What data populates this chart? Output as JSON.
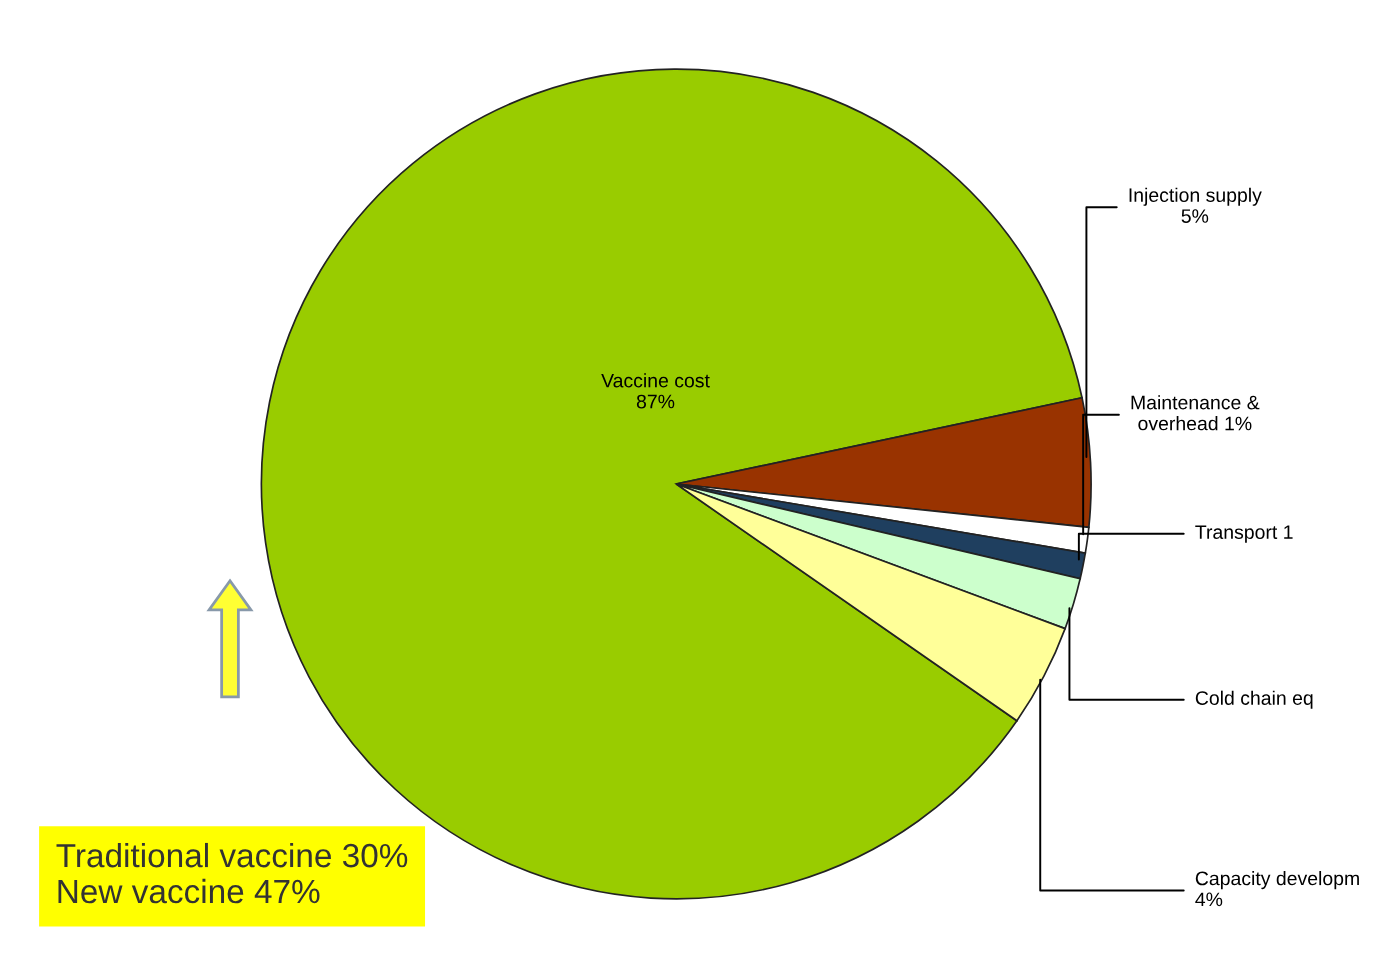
{
  "chart_data": {
    "type": "pie",
    "categories": [
      "Vaccine cost\n87%",
      "Injection supply\n5%",
      "Maintenance &\noverhead 1%",
      "Transport 1",
      "Cold chain eq",
      "Capacity developm\n4%"
    ],
    "values": [
      87,
      5,
      1,
      1,
      2,
      4
    ],
    "colors": [
      "#99cc00",
      "#993300",
      "#ffffff",
      "#1f3f5f",
      "#ccffcc",
      "#ffff99"
    ],
    "annotations": [
      "Traditional vaccine 30%\nNew vaccine 47%"
    ],
    "legend": false
  }
}
